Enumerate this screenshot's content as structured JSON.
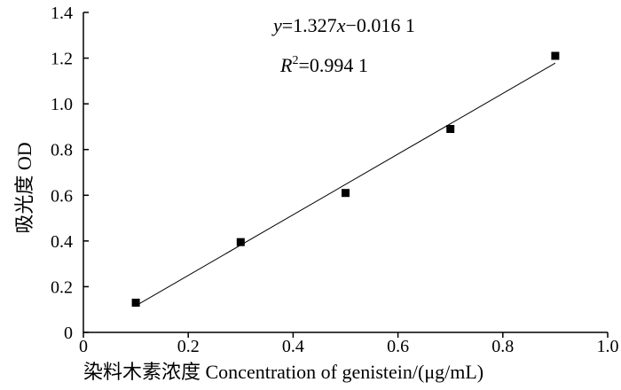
{
  "chart_data": {
    "type": "scatter",
    "title": "",
    "xlabel": "染料木素浓度 Concentration of genistein/(μg/mL)",
    "ylabel": "吸光度 OD",
    "xlim": [
      0,
      1.0
    ],
    "ylim": [
      0,
      1.4
    ],
    "x_ticks": [
      0,
      0.2,
      0.4,
      0.6,
      0.8,
      1.0
    ],
    "x_tick_labels": [
      "0",
      "0.2",
      "0.4",
      "0.6",
      "0.8",
      "1.0"
    ],
    "y_ticks": [
      0,
      0.2,
      0.4,
      0.6,
      0.8,
      1.0,
      1.2,
      1.4
    ],
    "y_tick_labels": [
      "0",
      "0.2",
      "0.4",
      "0.6",
      "0.8",
      "1.0",
      "1.2",
      "1.4"
    ],
    "grid": false,
    "legend": "none",
    "series": [
      {
        "marker": "square",
        "color": "#000000",
        "x": [
          0.1,
          0.3,
          0.5,
          0.7,
          0.9
        ],
        "y": [
          0.13,
          0.395,
          0.61,
          0.89,
          1.21
        ]
      }
    ],
    "trendline": {
      "slope": 1.327,
      "intercept": -0.0161,
      "x_range": [
        0.1,
        0.9
      ],
      "color": "#000000"
    },
    "annotations": {
      "equation": {
        "y_var": "y",
        "eq_mid": "=1.327",
        "x_var": "x",
        "eq_tail": "−0.016 1"
      },
      "r_squared": {
        "r_var": "R",
        "sup": "2",
        "value": "=0.994 1"
      }
    }
  }
}
